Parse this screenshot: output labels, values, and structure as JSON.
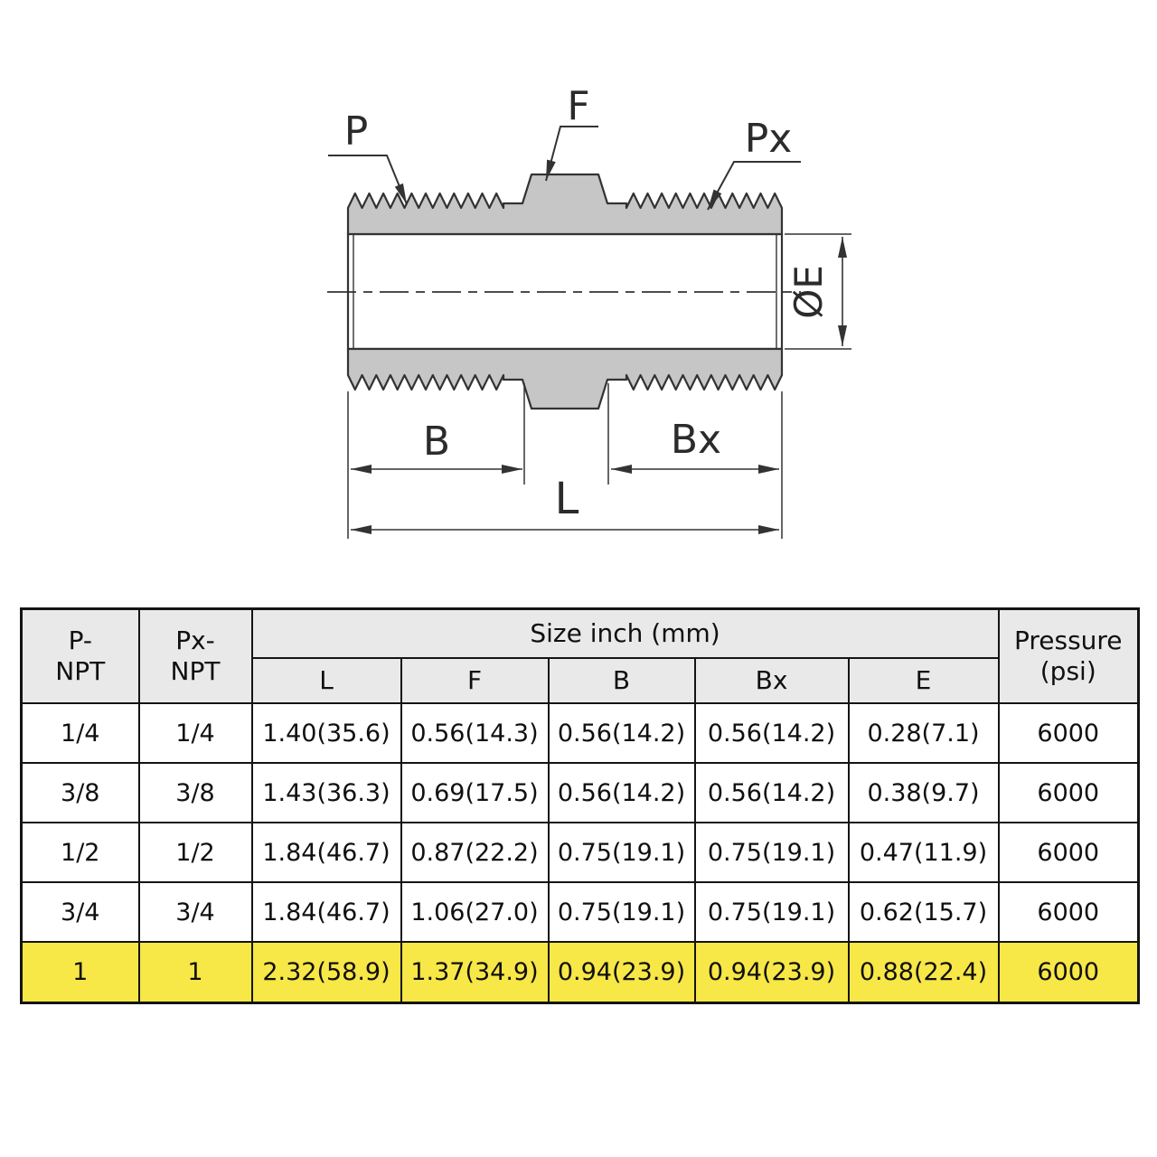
{
  "diagram": {
    "labels": {
      "p": "P",
      "f": "F",
      "px": "Px",
      "diameter": "ØE",
      "b": "B",
      "bx": "Bx",
      "l": "L"
    },
    "colors": {
      "thread_fill": "#c6c6c6",
      "line": "#333333"
    }
  },
  "table": {
    "headers": {
      "p_npt": "P-\nNPT",
      "px_npt": "Px-\nNPT",
      "size_group": "Size  inch (mm)",
      "pressure": "Pressure\n(psi)"
    },
    "sub_headers": [
      "L",
      "F",
      "B",
      "Bx",
      "E"
    ],
    "rows": [
      {
        "highlight": false,
        "cells": [
          "1/4",
          "1/4",
          "1.40(35.6)",
          "0.56(14.3)",
          "0.56(14.2)",
          "0.56(14.2)",
          "0.28(7.1)",
          "6000"
        ]
      },
      {
        "highlight": false,
        "cells": [
          "3/8",
          "3/8",
          "1.43(36.3)",
          "0.69(17.5)",
          "0.56(14.2)",
          "0.56(14.2)",
          "0.38(9.7)",
          "6000"
        ]
      },
      {
        "highlight": false,
        "cells": [
          "1/2",
          "1/2",
          "1.84(46.7)",
          "0.87(22.2)",
          "0.75(19.1)",
          "0.75(19.1)",
          "0.47(11.9)",
          "6000"
        ]
      },
      {
        "highlight": false,
        "cells": [
          "3/4",
          "3/4",
          "1.84(46.7)",
          "1.06(27.0)",
          "0.75(19.1)",
          "0.75(19.1)",
          "0.62(15.7)",
          "6000"
        ]
      },
      {
        "highlight": true,
        "cells": [
          "1",
          "1",
          "2.32(58.9)",
          "1.37(34.9)",
          "0.94(23.9)",
          "0.94(23.9)",
          "0.88(22.4)",
          "6000"
        ]
      }
    ],
    "colors": {
      "header_bg": "#e9e9e9",
      "highlight_bg": "#f7e747",
      "border": "#141414"
    }
  }
}
